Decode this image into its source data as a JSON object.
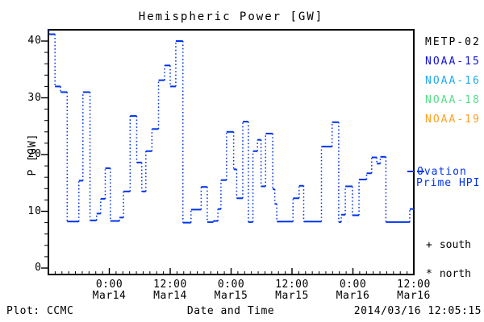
{
  "title": "Hemispheric Power [GW]",
  "axes": {
    "ylabel": "P [GW]",
    "xlabel": "Date and Time"
  },
  "footer": {
    "left": "Plot: CCMC",
    "right": "2014/03/16 12:05:15"
  },
  "legend": {
    "satellites": [
      {
        "label": "METP-02",
        "color": "#000000"
      },
      {
        "label": "NOAA-15",
        "color": "#1212dd"
      },
      {
        "label": "NOAA-16",
        "color": "#22aaee"
      },
      {
        "label": "NOAA-18",
        "color": "#55dd88"
      },
      {
        "label": "NOAA-19",
        "color": "#ffa020"
      }
    ],
    "ovation": {
      "line1": "Ovation",
      "line2": "Prime HPI",
      "color": "#0033ee"
    },
    "markers": [
      {
        "symbol": "+",
        "label": "south"
      },
      {
        "symbol": "*",
        "label": "north"
      }
    ]
  },
  "chart_data": {
    "type": "line",
    "style": "step, dotted verticals, solid horizontals",
    "series_name": "Ovation Prime HPI",
    "line_color": "#0033ee",
    "x_start": "2014-03-13 12:00",
    "x_end": "2014-03-16 12:00",
    "x_unit": "hours since 2014-03-13 12:00",
    "xlim": [
      0,
      72
    ],
    "ylim_gw": [
      -1,
      42
    ],
    "ylabel": "P [GW]",
    "xlabel": "Date and Time",
    "y_ticks": [
      0,
      10,
      20,
      30,
      40
    ],
    "y_minor_step_gw": 2,
    "x_minor_step_h": 1.3333,
    "x_ticks": [
      {
        "h": 12,
        "time": "0:00",
        "date": "Mar14"
      },
      {
        "h": 24,
        "time": "12:00",
        "date": "Mar14"
      },
      {
        "h": 36,
        "time": "0:00",
        "date": "Mar15"
      },
      {
        "h": 48,
        "time": "12:00",
        "date": "Mar15"
      },
      {
        "h": 60,
        "time": "0:00",
        "date": "Mar16"
      },
      {
        "h": 72,
        "time": "12:00",
        "date": "Mar16"
      }
    ],
    "steps_h_gw": [
      [
        0,
        42
      ],
      [
        0.2,
        41.2
      ],
      [
        1.3,
        32
      ],
      [
        2.4,
        31
      ],
      [
        3.7,
        8.2
      ],
      [
        6,
        15.4
      ],
      [
        6.8,
        31
      ],
      [
        8.2,
        8.4
      ],
      [
        9.5,
        9.6
      ],
      [
        10.3,
        12.2
      ],
      [
        11.2,
        17.6
      ],
      [
        12.2,
        8.3
      ],
      [
        14,
        8.9
      ],
      [
        14.8,
        13.5
      ],
      [
        16.1,
        26.8
      ],
      [
        17.4,
        18.6
      ],
      [
        18.4,
        13.5
      ],
      [
        19.2,
        20.6
      ],
      [
        20.4,
        24.5
      ],
      [
        21.7,
        33.1
      ],
      [
        22.9,
        35.7
      ],
      [
        24,
        32
      ],
      [
        25.1,
        40
      ],
      [
        26.5,
        8
      ],
      [
        28.1,
        10.3
      ],
      [
        30.1,
        14.3
      ],
      [
        31.3,
        8.1
      ],
      [
        32.5,
        8.3
      ],
      [
        33.4,
        10.4
      ],
      [
        34,
        15.5
      ],
      [
        35.1,
        24
      ],
      [
        36.5,
        17.4
      ],
      [
        37.1,
        12.3
      ],
      [
        38.3,
        25.8
      ],
      [
        39.4,
        8.1
      ],
      [
        40.3,
        20.6
      ],
      [
        41.2,
        22.6
      ],
      [
        41.9,
        14.4
      ],
      [
        42.8,
        23.7
      ],
      [
        44.2,
        13.9
      ],
      [
        44.6,
        11.3
      ],
      [
        45,
        8.2
      ],
      [
        48.2,
        12.3
      ],
      [
        49.4,
        14.5
      ],
      [
        50.3,
        8.2
      ],
      [
        53.8,
        21.4
      ],
      [
        55.9,
        25.7
      ],
      [
        57.2,
        8.1
      ],
      [
        57.7,
        9.4
      ],
      [
        58.5,
        14.4
      ],
      [
        59.9,
        9.3
      ],
      [
        61.2,
        15.6
      ],
      [
        62.7,
        16.7
      ],
      [
        63.7,
        19.5
      ],
      [
        64.7,
        18.4
      ],
      [
        65.4,
        19.6
      ],
      [
        66.5,
        8.1
      ],
      [
        71.2,
        10.4
      ]
    ]
  }
}
